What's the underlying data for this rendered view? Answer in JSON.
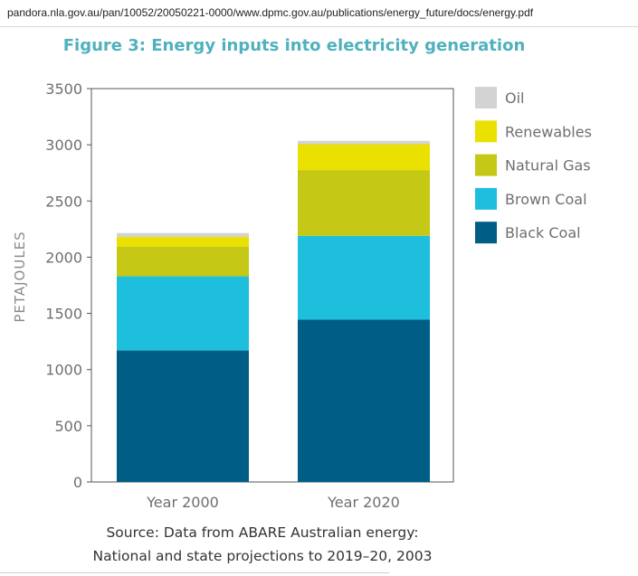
{
  "page": {
    "url": "pandora.nla.gov.au/pan/10052/20050221-0000/www.dpmc.gov.au/publications/energy_future/docs/energy.pdf"
  },
  "chart_data": {
    "type": "bar",
    "stacked": true,
    "title": "Figure 3: Energy inputs into electricity generation",
    "ylabel": "PETAJOULES",
    "xlabel": "",
    "categories": [
      "Year 2000",
      "Year 2020"
    ],
    "ylim": [
      0,
      3500
    ],
    "yticks": [
      0,
      500,
      1000,
      1500,
      2000,
      2500,
      3000,
      3500
    ],
    "grid": false,
    "legend_placement": "right",
    "series": [
      {
        "name": "Black Coal",
        "color": "#005d86",
        "values": [
          1170,
          1445
        ]
      },
      {
        "name": "Brown Coal",
        "color": "#1dbfdd",
        "values": [
          660,
          745
        ]
      },
      {
        "name": "Natural Gas",
        "color": "#c5c814",
        "values": [
          265,
          585
        ]
      },
      {
        "name": "Renewables",
        "color": "#ebe100",
        "values": [
          85,
          230
        ]
      },
      {
        "name": "Oil",
        "color": "#d3d3d3",
        "values": [
          35,
          30
        ]
      }
    ],
    "legend_order": [
      "Oil",
      "Renewables",
      "Natural Gas",
      "Brown Coal",
      "Black Coal"
    ],
    "source_lines": [
      "Source: Data from ABARE Australian energy:",
      "National and state projections to 2019–20, 2003"
    ],
    "title_color": "#4fb1bd"
  }
}
